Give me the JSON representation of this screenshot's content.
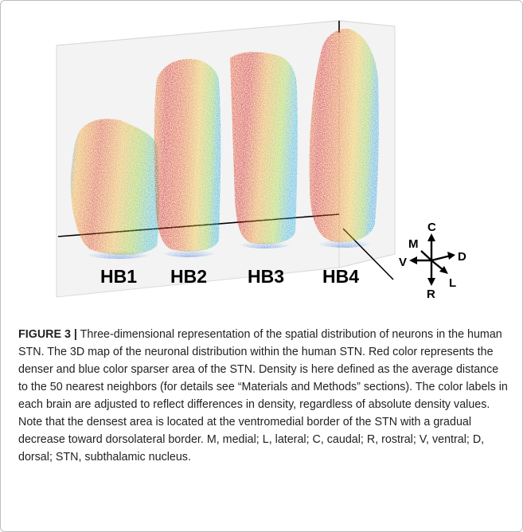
{
  "figure": {
    "panels": [
      {
        "label": "HB1"
      },
      {
        "label": "HB2"
      },
      {
        "label": "HB3"
      },
      {
        "label": "HB4"
      }
    ],
    "orientation": {
      "caudal": "C",
      "rostral": "R",
      "medial": "M",
      "lateral": "L",
      "ventral": "V",
      "dorsal": "D"
    },
    "colors": {
      "dense": "#d7261e",
      "mid": "#f5a623",
      "low": "#9acd32",
      "sparse": "#1f63d6"
    }
  },
  "caption": {
    "label": "FIGURE 3 |",
    "text": "Three-dimensional representation of the spatial distribution of neurons in the human STN. The 3D map of the neuronal distribution within the human STN. Red color represents the denser and blue color sparser area of the STN. Density is here defined as the average distance to the 50 nearest neighbors (for details see “Materials and Methods” sections). The color labels in each brain are adjusted to reflect differences in density, regardless of absolute density values. Note that the densest area is located at the ventromedial border of the STN with a gradual decrease toward dorsolateral border. M, medial; L, lateral; C, caudal; R, rostral; V, ventral; D, dorsal; STN, subthalamic nucleus."
  }
}
